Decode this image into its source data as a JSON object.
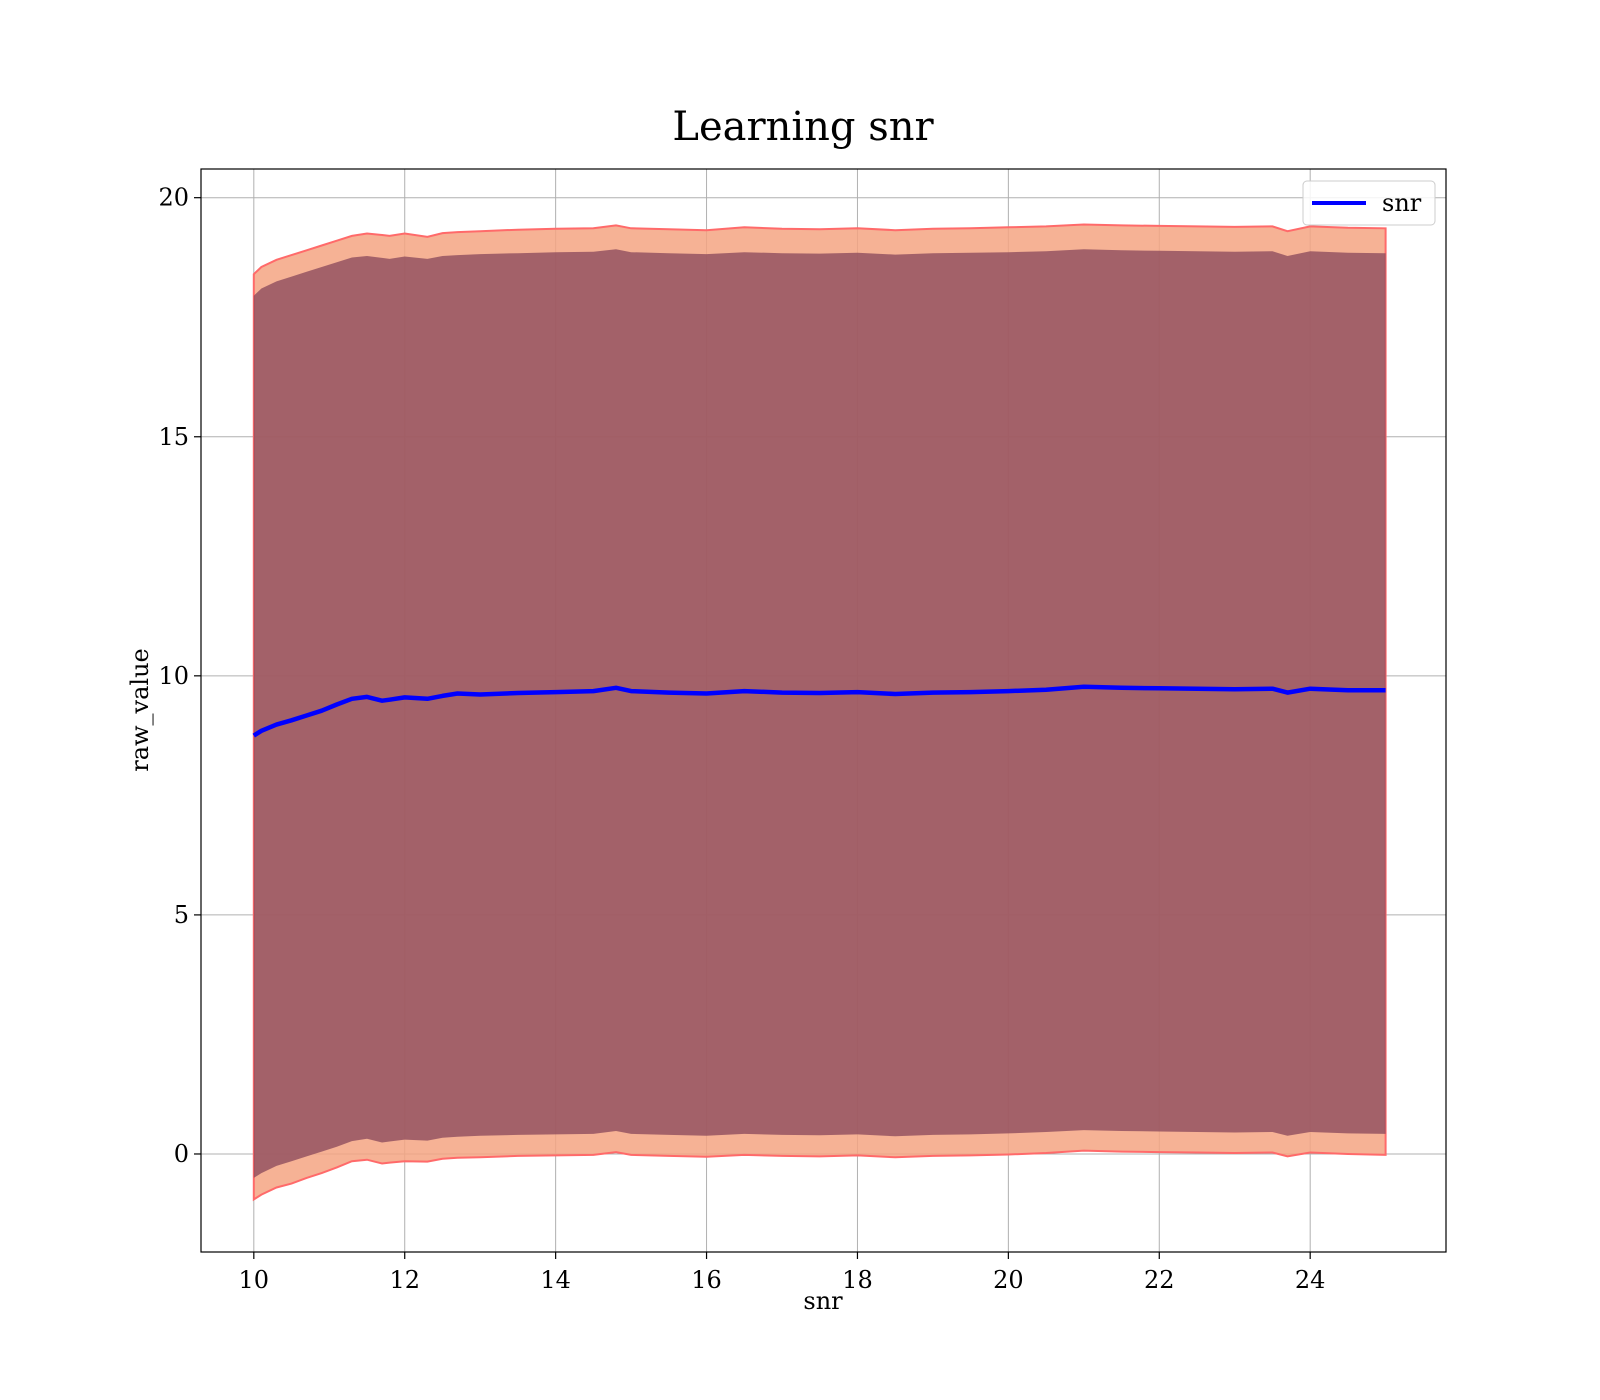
{
  "chart_data": {
    "type": "line",
    "title": "Learning snr",
    "xlabel": "snr",
    "ylabel": "raw_value",
    "xlim": [
      9.3,
      25.8
    ],
    "ylim": [
      -2.05,
      20.6
    ],
    "xticks": [
      10,
      12,
      14,
      16,
      18,
      20,
      22,
      24
    ],
    "yticks": [
      0,
      5,
      10,
      15,
      20
    ],
    "grid": true,
    "legend_position": "top-right",
    "x": [
      10.0,
      10.1,
      10.3,
      10.5,
      10.7,
      10.9,
      11.1,
      11.3,
      11.5,
      11.7,
      11.8,
      12.0,
      12.3,
      12.5,
      12.7,
      13.0,
      13.5,
      14.0,
      14.5,
      14.8,
      15.0,
      15.5,
      16.0,
      16.5,
      17.0,
      17.5,
      18.0,
      18.5,
      19.0,
      19.5,
      20.0,
      20.5,
      21.0,
      21.5,
      22.0,
      22.5,
      23.0,
      23.5,
      23.7,
      24.0,
      24.5,
      25.0
    ],
    "series": [
      {
        "name": "snr",
        "color": "#0000ff",
        "values": [
          8.75,
          8.85,
          8.98,
          9.07,
          9.17,
          9.27,
          9.4,
          9.52,
          9.56,
          9.48,
          9.5,
          9.55,
          9.52,
          9.58,
          9.63,
          9.61,
          9.64,
          9.66,
          9.68,
          9.75,
          9.68,
          9.65,
          9.63,
          9.68,
          9.65,
          9.64,
          9.66,
          9.62,
          9.65,
          9.66,
          9.68,
          9.71,
          9.77,
          9.75,
          9.74,
          9.73,
          9.72,
          9.73,
          9.65,
          9.73,
          9.7,
          9.7
        ]
      }
    ],
    "band_outer": {
      "color": "#f4a582",
      "edge_color": "#ff6a6a",
      "upper": [
        18.4,
        18.55,
        18.7,
        18.8,
        18.9,
        19.0,
        19.1,
        19.2,
        19.25,
        19.22,
        19.2,
        19.25,
        19.18,
        19.26,
        19.28,
        19.3,
        19.33,
        19.35,
        19.36,
        19.42,
        19.36,
        19.34,
        19.32,
        19.38,
        19.35,
        19.34,
        19.36,
        19.32,
        19.35,
        19.36,
        19.38,
        19.4,
        19.44,
        19.42,
        19.41,
        19.4,
        19.39,
        19.4,
        19.3,
        19.4,
        19.37,
        19.36
      ],
      "lower": [
        -0.95,
        -0.85,
        -0.7,
        -0.62,
        -0.5,
        -0.4,
        -0.28,
        -0.15,
        -0.12,
        -0.2,
        -0.18,
        -0.15,
        -0.16,
        -0.1,
        -0.08,
        -0.07,
        -0.04,
        -0.03,
        -0.02,
        0.04,
        -0.02,
        -0.04,
        -0.06,
        -0.02,
        -0.04,
        -0.05,
        -0.03,
        -0.07,
        -0.04,
        -0.03,
        -0.01,
        0.02,
        0.07,
        0.05,
        0.04,
        0.03,
        0.02,
        0.03,
        -0.05,
        0.03,
        0.0,
        -0.02
      ]
    },
    "band_inner": {
      "color": "#8c4a5c",
      "upper": [
        17.95,
        18.1,
        18.25,
        18.35,
        18.45,
        18.55,
        18.65,
        18.75,
        18.78,
        18.74,
        18.72,
        18.77,
        18.72,
        18.78,
        18.8,
        18.82,
        18.84,
        18.86,
        18.87,
        18.92,
        18.86,
        18.84,
        18.82,
        18.86,
        18.84,
        18.83,
        18.85,
        18.81,
        18.84,
        18.85,
        18.86,
        18.88,
        18.92,
        18.9,
        18.89,
        18.88,
        18.87,
        18.88,
        18.78,
        18.88,
        18.85,
        18.84
      ],
      "lower": [
        -0.5,
        -0.4,
        -0.25,
        -0.15,
        -0.05,
        0.05,
        0.15,
        0.27,
        0.32,
        0.24,
        0.26,
        0.3,
        0.28,
        0.34,
        0.36,
        0.38,
        0.4,
        0.41,
        0.42,
        0.48,
        0.42,
        0.4,
        0.38,
        0.42,
        0.4,
        0.39,
        0.41,
        0.37,
        0.4,
        0.41,
        0.43,
        0.46,
        0.5,
        0.48,
        0.47,
        0.46,
        0.45,
        0.46,
        0.38,
        0.46,
        0.43,
        0.42
      ]
    }
  }
}
